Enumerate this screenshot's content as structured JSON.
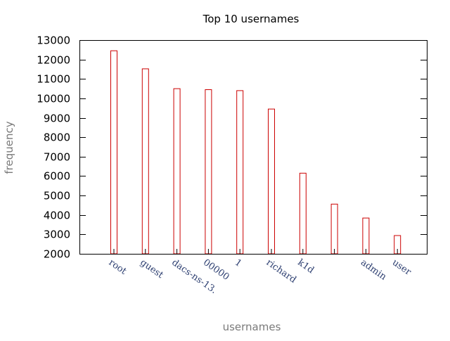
{
  "chart_data": {
    "type": "bar",
    "title": "Top 10 usernames",
    "xlabel": "usernames",
    "ylabel": "frequency",
    "categories": [
      "root",
      "guest",
      "dacs-ns-13.",
      "00000",
      "1",
      "richard",
      "k1d",
      "",
      "admin",
      "user"
    ],
    "values": [
      12450,
      11520,
      10500,
      10450,
      10400,
      9450,
      6150,
      4560,
      3840,
      2940
    ],
    "ylim": [
      2000,
      13000
    ],
    "yticks": [
      {
        "value": 2000,
        "label": "2000"
      },
      {
        "value": 3000,
        "label": "3000"
      },
      {
        "value": 4000,
        "label": "4000"
      },
      {
        "value": 5000,
        "label": "5000"
      },
      {
        "value": 6000,
        "label": "6000"
      },
      {
        "value": 7000,
        "label": "7000"
      },
      {
        "value": 8000,
        "label": "8000"
      },
      {
        "value": 9000,
        "label": "9000"
      },
      {
        "value": 10000,
        "label": "10000"
      },
      {
        "value": 11000,
        "label": "11000"
      },
      {
        "value": 12000,
        "label": "12000"
      },
      {
        "value": 13000,
        "label": "13000"
      }
    ],
    "grid": false,
    "legend": "none",
    "bar_color": "#cc0000",
    "bar_fill": "none"
  }
}
